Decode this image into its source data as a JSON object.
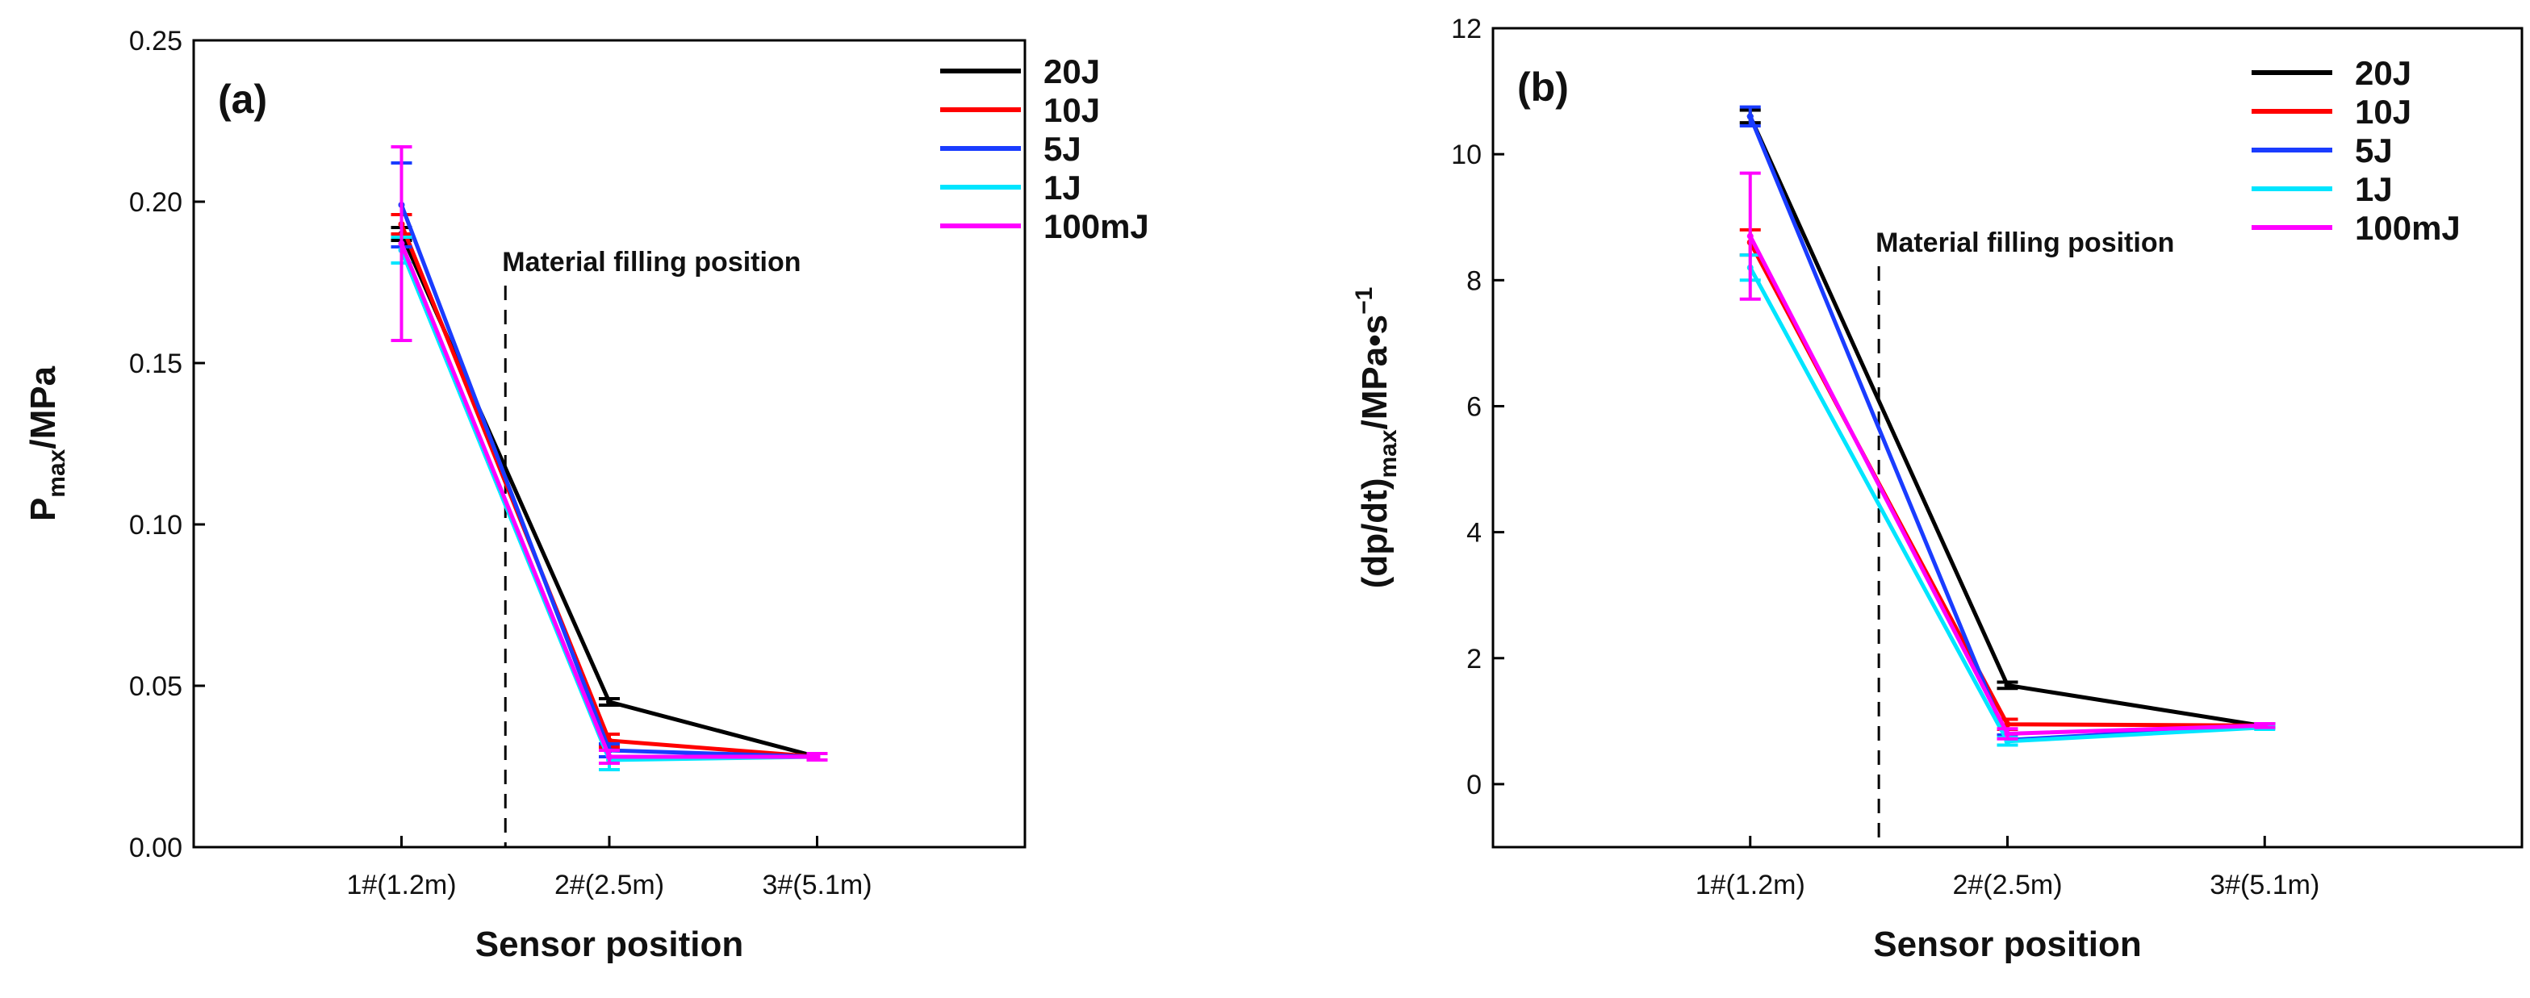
{
  "chart_data": [
    {
      "type": "line",
      "panel_label": "(a)",
      "title": "",
      "categories": [
        "1#(1.2m)",
        "2#(2.5m)",
        "3#(5.1m)"
      ],
      "xlabel": "Sensor position",
      "ylabel_main": "P",
      "ylabel_sub": "max",
      "ylabel_rest": "/MPa",
      "ylim": [
        0,
        0.25
      ],
      "yticks": [
        "0.00",
        "0.05",
        "0.10",
        "0.15",
        "0.20",
        "0.25"
      ],
      "annotation": {
        "text": "Material filling position",
        "x_between": [
          0,
          1
        ]
      },
      "legend_position": "top-right",
      "series": [
        {
          "name": "20J",
          "color": "#000000",
          "values": [
            0.19,
            0.045,
            0.028
          ],
          "errors": [
            0.002,
            0.001,
            0.001
          ]
        },
        {
          "name": "10J",
          "color": "#ff0000",
          "values": [
            0.193,
            0.033,
            0.028
          ],
          "errors": [
            0.003,
            0.002,
            0.001
          ]
        },
        {
          "name": "5J",
          "color": "#1a3cff",
          "values": [
            0.199,
            0.03,
            0.028
          ],
          "errors": [
            0.013,
            0.002,
            0.001
          ]
        },
        {
          "name": "1J",
          "color": "#00e5ff",
          "values": [
            0.185,
            0.027,
            0.028
          ],
          "errors": [
            0.004,
            0.003,
            0.001
          ]
        },
        {
          "name": "100mJ",
          "color": "#ff00ff",
          "values": [
            0.187,
            0.028,
            0.028
          ],
          "errors": [
            0.03,
            0.002,
            0.001
          ]
        }
      ]
    },
    {
      "type": "line",
      "panel_label": "(b)",
      "title": "",
      "categories": [
        "1#(1.2m)",
        "2#(2.5m)",
        "3#(5.1m)"
      ],
      "xlabel": "Sensor position",
      "ylabel_main": "(dp/dt)",
      "ylabel_sub": "max",
      "ylabel_rest": "/MPa•s",
      "ylabel_sup": "−1",
      "ylim": [
        -1,
        12
      ],
      "yticks": [
        "0",
        "2",
        "4",
        "6",
        "8",
        "10",
        "12"
      ],
      "annotation": {
        "text": "Material filling position",
        "x_between": [
          0,
          1
        ]
      },
      "legend_position": "top-right",
      "series": [
        {
          "name": "20J",
          "color": "#000000",
          "values": [
            10.6,
            1.57,
            0.92
          ],
          "errors": [
            0.1,
            0.05,
            0.03
          ]
        },
        {
          "name": "10J",
          "color": "#ff0000",
          "values": [
            8.6,
            0.95,
            0.93
          ],
          "errors": [
            0.2,
            0.08,
            0.03
          ]
        },
        {
          "name": "5J",
          "color": "#1a3cff",
          "values": [
            10.6,
            0.7,
            0.93
          ],
          "errors": [
            0.15,
            0.08,
            0.03
          ]
        },
        {
          "name": "1J",
          "color": "#00e5ff",
          "values": [
            8.2,
            0.68,
            0.9
          ],
          "errors": [
            0.2,
            0.06,
            0.03
          ]
        },
        {
          "name": "100mJ",
          "color": "#ff00ff",
          "values": [
            8.7,
            0.8,
            0.93
          ],
          "errors": [
            1.0,
            0.08,
            0.03
          ]
        }
      ]
    }
  ]
}
